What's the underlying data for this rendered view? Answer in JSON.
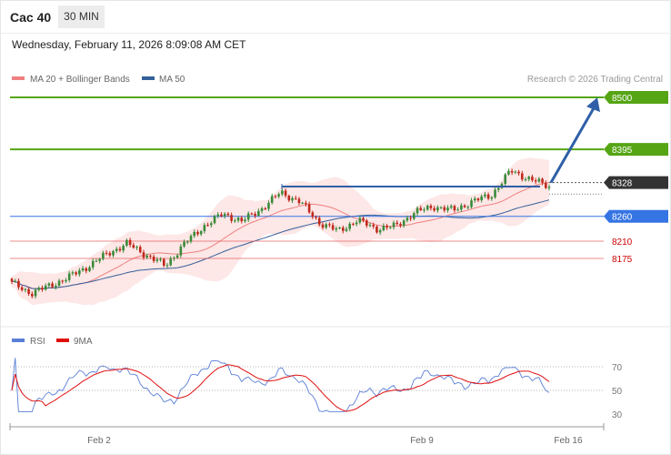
{
  "header": {
    "title": "Cac 40",
    "timeframe": "30 MIN",
    "datetime": "Wednesday, February 11, 2026 8:09:08 AM CET"
  },
  "legend": {
    "ma20": "MA 20 + Bollinger Bands",
    "ma50": "MA 50",
    "copyright": "Research © 2026 Trading Central",
    "rsi": "RSI",
    "rsi_ma": "9MA"
  },
  "colors": {
    "resistance": "#55a514",
    "pivot": "#3574e3",
    "support": "#e55a5a",
    "current": "#333333",
    "ma20": "#f08080",
    "ma50": "#34609a",
    "band": "#fde3e3",
    "arrow": "#2f5fa6",
    "up_candle": "#3a8a3a",
    "down_candle": "#c0281b"
  },
  "chart_data": [
    {
      "type": "candlestick",
      "xlabel": "",
      "ylabel": "",
      "x_ticks": [
        "Feb 2",
        "Feb 9",
        "Feb 16"
      ],
      "levels": [
        {
          "role": "resistance",
          "value": 8500
        },
        {
          "role": "resistance",
          "value": 8395
        },
        {
          "role": "current",
          "value": 8328
        },
        {
          "role": "pivot",
          "value": 8260
        },
        {
          "role": "support",
          "value": 8210
        },
        {
          "role": "support",
          "value": 8175
        }
      ],
      "ylim": [
        8050,
        8510
      ],
      "series_shown": [
        "candles",
        "MA 20",
        "Bollinger Bands",
        "MA 50"
      ],
      "annotation": "arrow up towards 8500",
      "close_estimates": [
        8125,
        8105,
        8120,
        8138,
        8160,
        8185,
        8205,
        8182,
        8160,
        8205,
        8240,
        8265,
        8250,
        8275,
        8308,
        8290,
        8248,
        8230,
        8252,
        8235,
        8240,
        8268,
        8280,
        8272,
        8290,
        8303,
        8352,
        8335,
        8320
      ]
    },
    {
      "type": "line",
      "series": [
        {
          "name": "RSI"
        },
        {
          "name": "9MA"
        }
      ],
      "ylim": [
        25,
        80
      ],
      "y_ticks": [
        70,
        50,
        30
      ]
    }
  ]
}
